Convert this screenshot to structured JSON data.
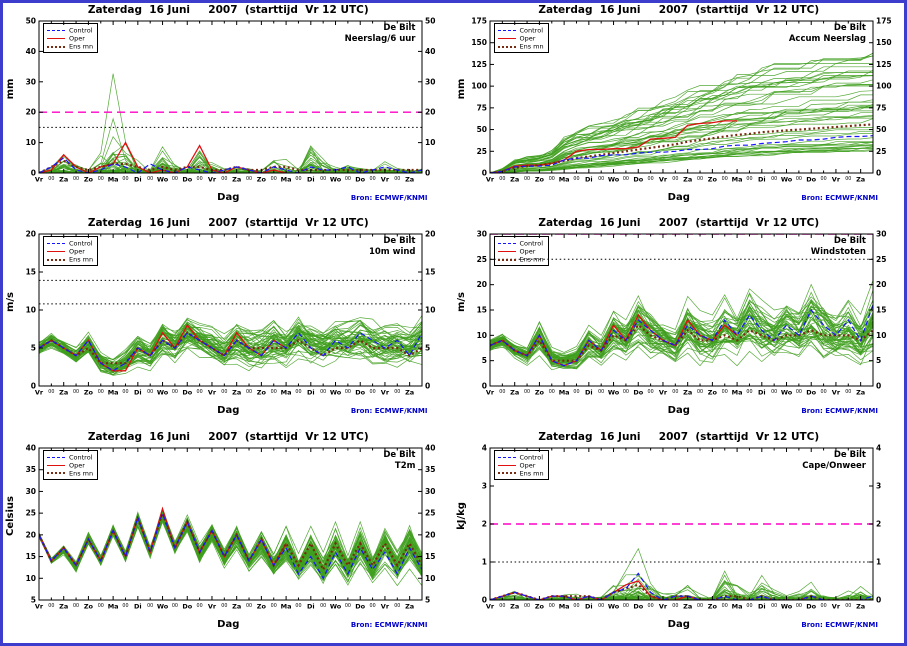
{
  "panel_title": "Zaterdag  16 Juni     2007  (starttijd  Vr 12 UTC)",
  "station": "De Bilt",
  "bron_label": "Bron: ECMWF/KNMI",
  "legend": {
    "items": [
      {
        "key": "control",
        "label": "Control"
      },
      {
        "key": "oper",
        "label": "Oper"
      },
      {
        "key": "ensmean",
        "label": "Ens mn"
      }
    ]
  },
  "x_axis": {
    "label": "Dag",
    "range": [
      0,
      15.5
    ],
    "day_labels": [
      "Vr",
      "Za",
      "Zo",
      "Ma",
      "Di",
      "Wo",
      "Do",
      "Vr",
      "Za",
      "Zo",
      "Ma",
      "Di",
      "Wo",
      "Do",
      "Vr",
      "Za"
    ],
    "minor_label": "00"
  },
  "colors": {
    "control": "#1515ff",
    "oper": "#e01010",
    "ensmean": "#7a2a10",
    "member": "#3f9e1e",
    "threshold_magenta": "#ff00c8",
    "threshold_black": "#000000",
    "bron": "#0000cc",
    "frame": "#3c3ccd"
  },
  "chart_data": [
    {
      "type": "line",
      "name": "neerslag-6uur",
      "variable_label": "Neerslag/6 uur",
      "ylabel": "mm",
      "ylim": [
        0,
        50
      ],
      "yticks": [
        0,
        10,
        20,
        30,
        40,
        50
      ],
      "thresholds": [
        {
          "value": 20,
          "style": "magenta-dashed"
        },
        {
          "value": 15,
          "style": "black-dotted"
        }
      ],
      "mode": "spiky",
      "x_step_days": 0.5,
      "n_members": 50,
      "series": {
        "control": [
          0,
          2,
          5,
          1,
          0,
          1,
          3,
          2,
          0,
          3,
          1,
          0,
          2,
          1,
          0,
          1,
          2,
          1,
          0,
          2,
          1,
          0,
          2,
          1,
          1,
          2,
          0,
          1,
          2,
          1,
          0,
          1
        ],
        "oper": [
          0,
          1,
          6,
          2,
          0,
          2,
          3,
          10,
          2,
          0,
          1,
          0,
          2,
          9,
          1,
          0,
          2,
          1,
          0,
          1,
          0
        ],
        "ensmean": [
          0,
          2,
          4,
          2,
          1,
          2,
          3,
          3,
          2,
          1,
          2,
          1,
          2,
          2,
          1,
          1,
          2,
          1,
          1,
          2,
          2,
          1,
          1,
          1,
          1,
          1,
          1,
          1,
          1,
          1,
          1,
          1
        ]
      },
      "envelope": {
        "min": [
          0,
          0,
          0,
          0,
          0,
          0,
          0,
          0,
          0,
          0,
          0,
          0,
          0,
          0,
          0,
          0,
          0,
          0,
          0,
          0,
          0,
          0,
          0,
          0,
          0,
          0,
          0,
          0,
          0,
          0,
          0,
          0
        ],
        "max": [
          1,
          8,
          14,
          6,
          2,
          10,
          37,
          23,
          8,
          4,
          22,
          6,
          3,
          24,
          10,
          3,
          6,
          4,
          2,
          8,
          6,
          3,
          38,
          10,
          4,
          6,
          3,
          2,
          6,
          4,
          2,
          3
        ]
      }
    },
    {
      "type": "line",
      "name": "accum-neerslag",
      "variable_label": "Accum Neerslag",
      "ylabel": "mm",
      "ylim": [
        0,
        175
      ],
      "yticks": [
        0,
        25,
        50,
        75,
        100,
        125,
        150,
        175
      ],
      "thresholds": [],
      "mode": "cumulative",
      "x_step_days": 0.5,
      "n_members": 50,
      "series": {
        "control": [
          0,
          2,
          7,
          8,
          8,
          9,
          15,
          17,
          17,
          20,
          21,
          21,
          23,
          24,
          24,
          25,
          27,
          27,
          28,
          31,
          32,
          32,
          34,
          35,
          36,
          38,
          38,
          39,
          41,
          42,
          42,
          43
        ],
        "oper": [
          0,
          2,
          8,
          9,
          9,
          11,
          15,
          25,
          27,
          27,
          28,
          28,
          30,
          39,
          40,
          41,
          55,
          57,
          58,
          60,
          60
        ],
        "ensmean": [
          0,
          2,
          6,
          8,
          9,
          11,
          14,
          17,
          19,
          21,
          23,
          25,
          27,
          29,
          31,
          33,
          36,
          38,
          40,
          42,
          44,
          45,
          47,
          48,
          49,
          50,
          51,
          52,
          53,
          54,
          55,
          56
        ]
      },
      "envelope": {
        "min": [
          0,
          0,
          1,
          2,
          2,
          3,
          4,
          5,
          6,
          7,
          8,
          9,
          10,
          11,
          12,
          13,
          14,
          15,
          16,
          17,
          18,
          19,
          20,
          20,
          21,
          21,
          22,
          22,
          23,
          23,
          24,
          25
        ],
        "max": [
          0,
          5,
          15,
          18,
          20,
          25,
          40,
          48,
          52,
          55,
          60,
          65,
          70,
          75,
          80,
          85,
          90,
          95,
          100,
          105,
          110,
          112,
          115,
          118,
          120,
          122,
          125,
          127,
          128,
          129,
          130,
          131
        ]
      }
    },
    {
      "type": "line",
      "name": "10m-wind",
      "variable_label": "10m wind",
      "ylabel": "m/s",
      "ylim": [
        0,
        20
      ],
      "yticks": [
        0,
        5,
        10,
        15,
        20
      ],
      "thresholds": [
        {
          "value": 13.9,
          "style": "black-dotted"
        },
        {
          "value": 10.8,
          "style": "black-dotted"
        }
      ],
      "mode": "smooth",
      "x_step_days": 0.5,
      "n_members": 50,
      "series": {
        "control": [
          5,
          6,
          5,
          4,
          6,
          3,
          2,
          3,
          5,
          4,
          6,
          5,
          7,
          6,
          5,
          4,
          6,
          5,
          4,
          6,
          5,
          7,
          5,
          4,
          6,
          5,
          7,
          6,
          5,
          6,
          4,
          7
        ],
        "oper": [
          5,
          6,
          5,
          4,
          6,
          3,
          2,
          2,
          5,
          4,
          7,
          5,
          8,
          6,
          5,
          4,
          7,
          5,
          4,
          6,
          5
        ],
        "ensmean": [
          5,
          6,
          5,
          4,
          5,
          3,
          3,
          3,
          5,
          4,
          6,
          5,
          7,
          6,
          5,
          4,
          6,
          5,
          5,
          5,
          5,
          6,
          5,
          4,
          5,
          5,
          6,
          5,
          5,
          5,
          4,
          5
        ]
      },
      "envelope": {
        "min": [
          3.5,
          4.5,
          3.5,
          2.5,
          3.5,
          1.5,
          1,
          1.5,
          2.5,
          2,
          3.5,
          2.5,
          3.5,
          3,
          2.5,
          2,
          2.5,
          2,
          2,
          2.5,
          2,
          2.5,
          2,
          2,
          2,
          2,
          2.5,
          2,
          2,
          2,
          2,
          2
        ],
        "max": [
          6.5,
          7.5,
          6.5,
          5.5,
          7.5,
          5,
          4,
          5,
          7,
          6,
          9,
          8,
          10,
          9,
          8,
          7,
          9,
          8,
          8,
          9,
          8,
          10,
          9,
          8,
          9,
          9,
          10,
          9,
          9,
          9,
          8,
          10
        ]
      }
    },
    {
      "type": "line",
      "name": "windstoten",
      "variable_label": "Windstoten",
      "ylabel": "m/s",
      "ylim": [
        0,
        30
      ],
      "yticks": [
        0,
        5,
        10,
        15,
        20,
        25,
        30
      ],
      "thresholds": [
        {
          "value": 30,
          "style": "magenta-dashed"
        },
        {
          "value": 25,
          "style": "black-dotted"
        }
      ],
      "mode": "smooth",
      "x_step_days": 0.5,
      "n_members": 50,
      "series": {
        "control": [
          8,
          9,
          7,
          6,
          10,
          5,
          4,
          5,
          9,
          7,
          11,
          9,
          13,
          11,
          9,
          8,
          12,
          10,
          9,
          13,
          10,
          14,
          11,
          9,
          12,
          10,
          15,
          12,
          10,
          13,
          9,
          16
        ],
        "oper": [
          8,
          9,
          7,
          6,
          10,
          5,
          4,
          5,
          9,
          7,
          12,
          9,
          14,
          11,
          9,
          8,
          13,
          10,
          9,
          12,
          10
        ],
        "ensmean": [
          8,
          9,
          7,
          6,
          9,
          5,
          5,
          5,
          8,
          7,
          10,
          9,
          12,
          10,
          9,
          8,
          11,
          9,
          9,
          10,
          9,
          11,
          10,
          9,
          10,
          10,
          11,
          10,
          10,
          10,
          9,
          11
        ]
      },
      "envelope": {
        "min": [
          6,
          7,
          5,
          4,
          6,
          3,
          3,
          3,
          5,
          4,
          6,
          5,
          7,
          5,
          5,
          4,
          6,
          4,
          4,
          5,
          4,
          5,
          4,
          4,
          4,
          4,
          5,
          4,
          4,
          4,
          4,
          5
        ],
        "max": [
          10,
          11,
          9,
          8,
          13,
          8,
          7,
          8,
          12,
          10,
          16,
          14,
          19,
          16,
          14,
          12,
          18,
          15,
          14,
          18,
          15,
          20,
          17,
          15,
          18,
          16,
          21,
          18,
          16,
          19,
          15,
          22
        ]
      }
    },
    {
      "type": "line",
      "name": "t2m",
      "variable_label": "T2m",
      "ylabel": "Celsius",
      "ylim": [
        5,
        40
      ],
      "yticks": [
        5,
        10,
        15,
        20,
        25,
        30,
        35,
        40
      ],
      "thresholds": [],
      "mode": "smooth",
      "x_step_days": 0.5,
      "n_members": 50,
      "series": {
        "control": [
          20,
          14,
          17,
          13,
          19,
          14,
          21,
          15,
          24,
          16,
          25,
          17,
          23,
          16,
          21,
          15,
          20,
          14,
          19,
          13,
          17,
          11,
          15,
          10,
          16,
          11,
          17,
          12,
          16,
          11,
          17,
          12
        ],
        "oper": [
          20,
          14,
          17,
          13,
          19,
          14,
          21,
          15,
          24,
          16,
          26,
          17,
          23,
          16,
          21,
          15,
          20,
          14,
          19,
          13,
          18
        ],
        "ensmean": [
          20,
          14,
          17,
          13,
          19,
          14,
          21,
          15,
          24,
          16,
          25,
          17,
          23,
          16,
          21,
          15,
          20,
          14,
          19,
          13,
          18,
          13,
          18,
          12,
          18,
          13,
          18,
          13,
          18,
          13,
          18,
          13
        ]
      },
      "envelope": {
        "min": [
          19,
          13,
          15,
          11,
          17,
          12,
          19,
          13,
          21,
          14,
          22,
          15,
          20,
          13,
          18,
          12,
          16,
          11,
          14,
          10,
          13,
          9,
          12,
          8,
          12,
          8,
          12,
          8,
          12,
          8,
          12,
          8
        ],
        "max": [
          21,
          15,
          18,
          14,
          21,
          16,
          23,
          17,
          26,
          18,
          27,
          19,
          25,
          18,
          23,
          17,
          23,
          16,
          22,
          16,
          22,
          16,
          22,
          16,
          23,
          16,
          23,
          16,
          23,
          17,
          24,
          17
        ]
      }
    },
    {
      "type": "line",
      "name": "cape-onweer",
      "variable_label": "Cape/Onweer",
      "ylabel": "kJ/kg",
      "ylim": [
        0,
        4
      ],
      "yticks": [
        0,
        1,
        2,
        3,
        4
      ],
      "thresholds": [
        {
          "value": 2,
          "style": "magenta-dashed"
        },
        {
          "value": 1,
          "style": "black-dotted"
        }
      ],
      "mode": "spiky",
      "x_step_days": 0.5,
      "n_members": 50,
      "series": {
        "control": [
          0,
          0.1,
          0.2,
          0.1,
          0,
          0.1,
          0.1,
          0,
          0.1,
          0,
          0.2,
          0.3,
          0.7,
          0.2,
          0,
          0.1,
          0.1,
          0,
          0,
          0.1,
          0,
          0,
          0.1,
          0,
          0,
          0,
          0.1,
          0,
          0,
          0,
          0,
          0.1
        ],
        "oper": [
          0,
          0.1,
          0.2,
          0.1,
          0,
          0.1,
          0.1,
          0,
          0.1,
          0,
          0.2,
          0.4,
          0.5,
          0.1,
          0,
          0,
          0.1,
          0,
          0,
          0,
          0
        ],
        "ensmean": [
          0,
          0.1,
          0.2,
          0.1,
          0,
          0.1,
          0.1,
          0.1,
          0.1,
          0,
          0.2,
          0.3,
          0.4,
          0.1,
          0,
          0.1,
          0.1,
          0,
          0,
          0.1,
          0.1,
          0,
          0.1,
          0,
          0,
          0,
          0.1,
          0,
          0,
          0,
          0,
          0
        ]
      },
      "envelope": {
        "min": [
          0,
          0,
          0,
          0,
          0,
          0,
          0,
          0,
          0,
          0,
          0,
          0,
          0,
          0,
          0,
          0,
          0,
          0,
          0,
          0,
          0,
          0,
          0,
          0,
          0,
          0,
          0,
          0,
          0,
          0,
          0,
          0
        ],
        "max": [
          0.1,
          0.4,
          0.6,
          0.3,
          0.1,
          0.3,
          0.5,
          0.3,
          0.2,
          0.3,
          0.8,
          1.5,
          1.9,
          0.8,
          0.3,
          0.4,
          1.0,
          0.4,
          0.3,
          1.9,
          0.8,
          0.3,
          1.2,
          0.5,
          0.3,
          0.4,
          1.4,
          0.5,
          0.2,
          0.4,
          0.9,
          0.3
        ]
      }
    }
  ]
}
